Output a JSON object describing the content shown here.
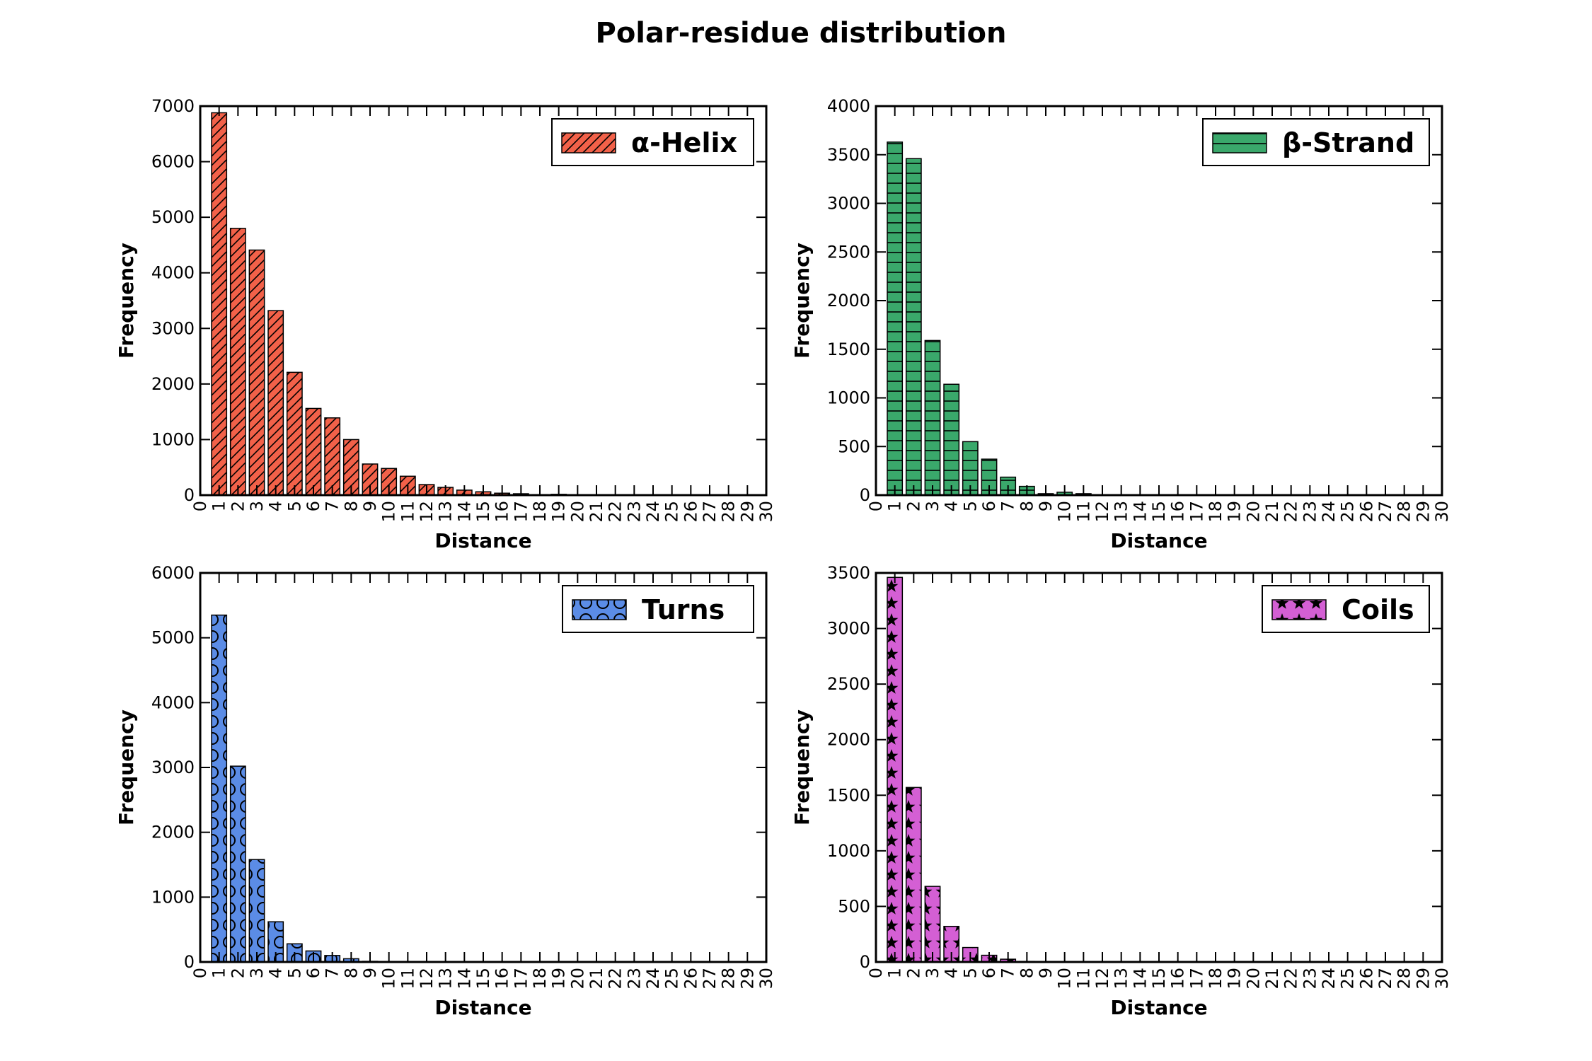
{
  "figure": {
    "title": "Polar-residue distribution"
  },
  "chart_data": [
    {
      "type": "bar",
      "legend": "α-Helix",
      "legend_position": "top-right",
      "color": "#f26149",
      "pattern": "hatch-diagonal",
      "xlabel": "Distance",
      "ylabel": "Frequency",
      "xlim": [
        0,
        30
      ],
      "ylim": [
        0,
        7000
      ],
      "yticks": [
        0,
        1000,
        2000,
        3000,
        4000,
        5000,
        6000,
        7000
      ],
      "x": [
        1,
        2,
        3,
        4,
        5,
        6,
        7,
        8,
        9,
        10,
        11,
        12,
        13,
        14,
        15,
        16,
        17,
        18,
        19,
        20,
        21,
        22,
        23,
        24,
        25,
        26,
        27,
        28,
        29
      ],
      "values": [
        6880,
        4800,
        4410,
        3320,
        2210,
        1560,
        1390,
        1000,
        560,
        480,
        340,
        190,
        140,
        90,
        60,
        35,
        25,
        10,
        15,
        5,
        0,
        0,
        0,
        0,
        0,
        0,
        0,
        0,
        0
      ]
    },
    {
      "type": "bar",
      "legend": "β-Strand",
      "legend_position": "top-right",
      "color": "#3aa86b",
      "pattern": "hatch-horizontal",
      "xlabel": "Distance",
      "ylabel": "Frequency",
      "xlim": [
        0,
        30
      ],
      "ylim": [
        0,
        4000
      ],
      "yticks": [
        0,
        500,
        1000,
        1500,
        2000,
        2500,
        3000,
        3500,
        4000
      ],
      "x": [
        1,
        2,
        3,
        4,
        5,
        6,
        7,
        8,
        9,
        10,
        11,
        12,
        13,
        14,
        15,
        16,
        17,
        18,
        19,
        20,
        21,
        22,
        23,
        24,
        25,
        26,
        27,
        28,
        29
      ],
      "values": [
        3630,
        3460,
        1590,
        1140,
        550,
        370,
        185,
        90,
        15,
        30,
        15,
        5,
        0,
        0,
        0,
        0,
        0,
        0,
        0,
        0,
        0,
        0,
        0,
        0,
        0,
        0,
        0,
        0,
        0
      ]
    },
    {
      "type": "bar",
      "legend": "Turns",
      "legend_position": "top-right",
      "color": "#5b8ce6",
      "pattern": "circles",
      "xlabel": "Distance",
      "ylabel": "Frequency",
      "xlim": [
        0,
        30
      ],
      "ylim": [
        0,
        6000
      ],
      "yticks": [
        0,
        1000,
        2000,
        3000,
        4000,
        5000,
        6000
      ],
      "x": [
        1,
        2,
        3,
        4,
        5,
        6,
        7,
        8,
        9,
        10,
        11,
        12,
        13,
        14,
        15,
        16,
        17,
        18,
        19,
        20,
        21,
        22,
        23,
        24,
        25,
        26,
        27,
        28,
        29
      ],
      "values": [
        5350,
        3020,
        1580,
        620,
        280,
        170,
        100,
        50,
        10,
        5,
        0,
        0,
        0,
        0,
        0,
        0,
        0,
        0,
        0,
        0,
        0,
        0,
        0,
        0,
        0,
        0,
        0,
        0,
        0
      ]
    },
    {
      "type": "bar",
      "legend": "Coils",
      "legend_position": "top-right",
      "color": "#d45fd4",
      "pattern": "stars",
      "xlabel": "Distance",
      "ylabel": "Frequency",
      "xlim": [
        0,
        30
      ],
      "ylim": [
        0,
        3500
      ],
      "yticks": [
        0,
        500,
        1000,
        1500,
        2000,
        2500,
        3000,
        3500
      ],
      "x": [
        1,
        2,
        3,
        4,
        5,
        6,
        7,
        8,
        9,
        10,
        11,
        12,
        13,
        14,
        15,
        16,
        17,
        18,
        19,
        20,
        21,
        22,
        23,
        24,
        25,
        26,
        27,
        28,
        29
      ],
      "values": [
        3460,
        1570,
        680,
        320,
        130,
        60,
        25,
        5,
        0,
        0,
        0,
        0,
        0,
        0,
        0,
        0,
        0,
        0,
        0,
        0,
        0,
        0,
        0,
        0,
        0,
        0,
        0,
        0,
        0
      ]
    }
  ]
}
